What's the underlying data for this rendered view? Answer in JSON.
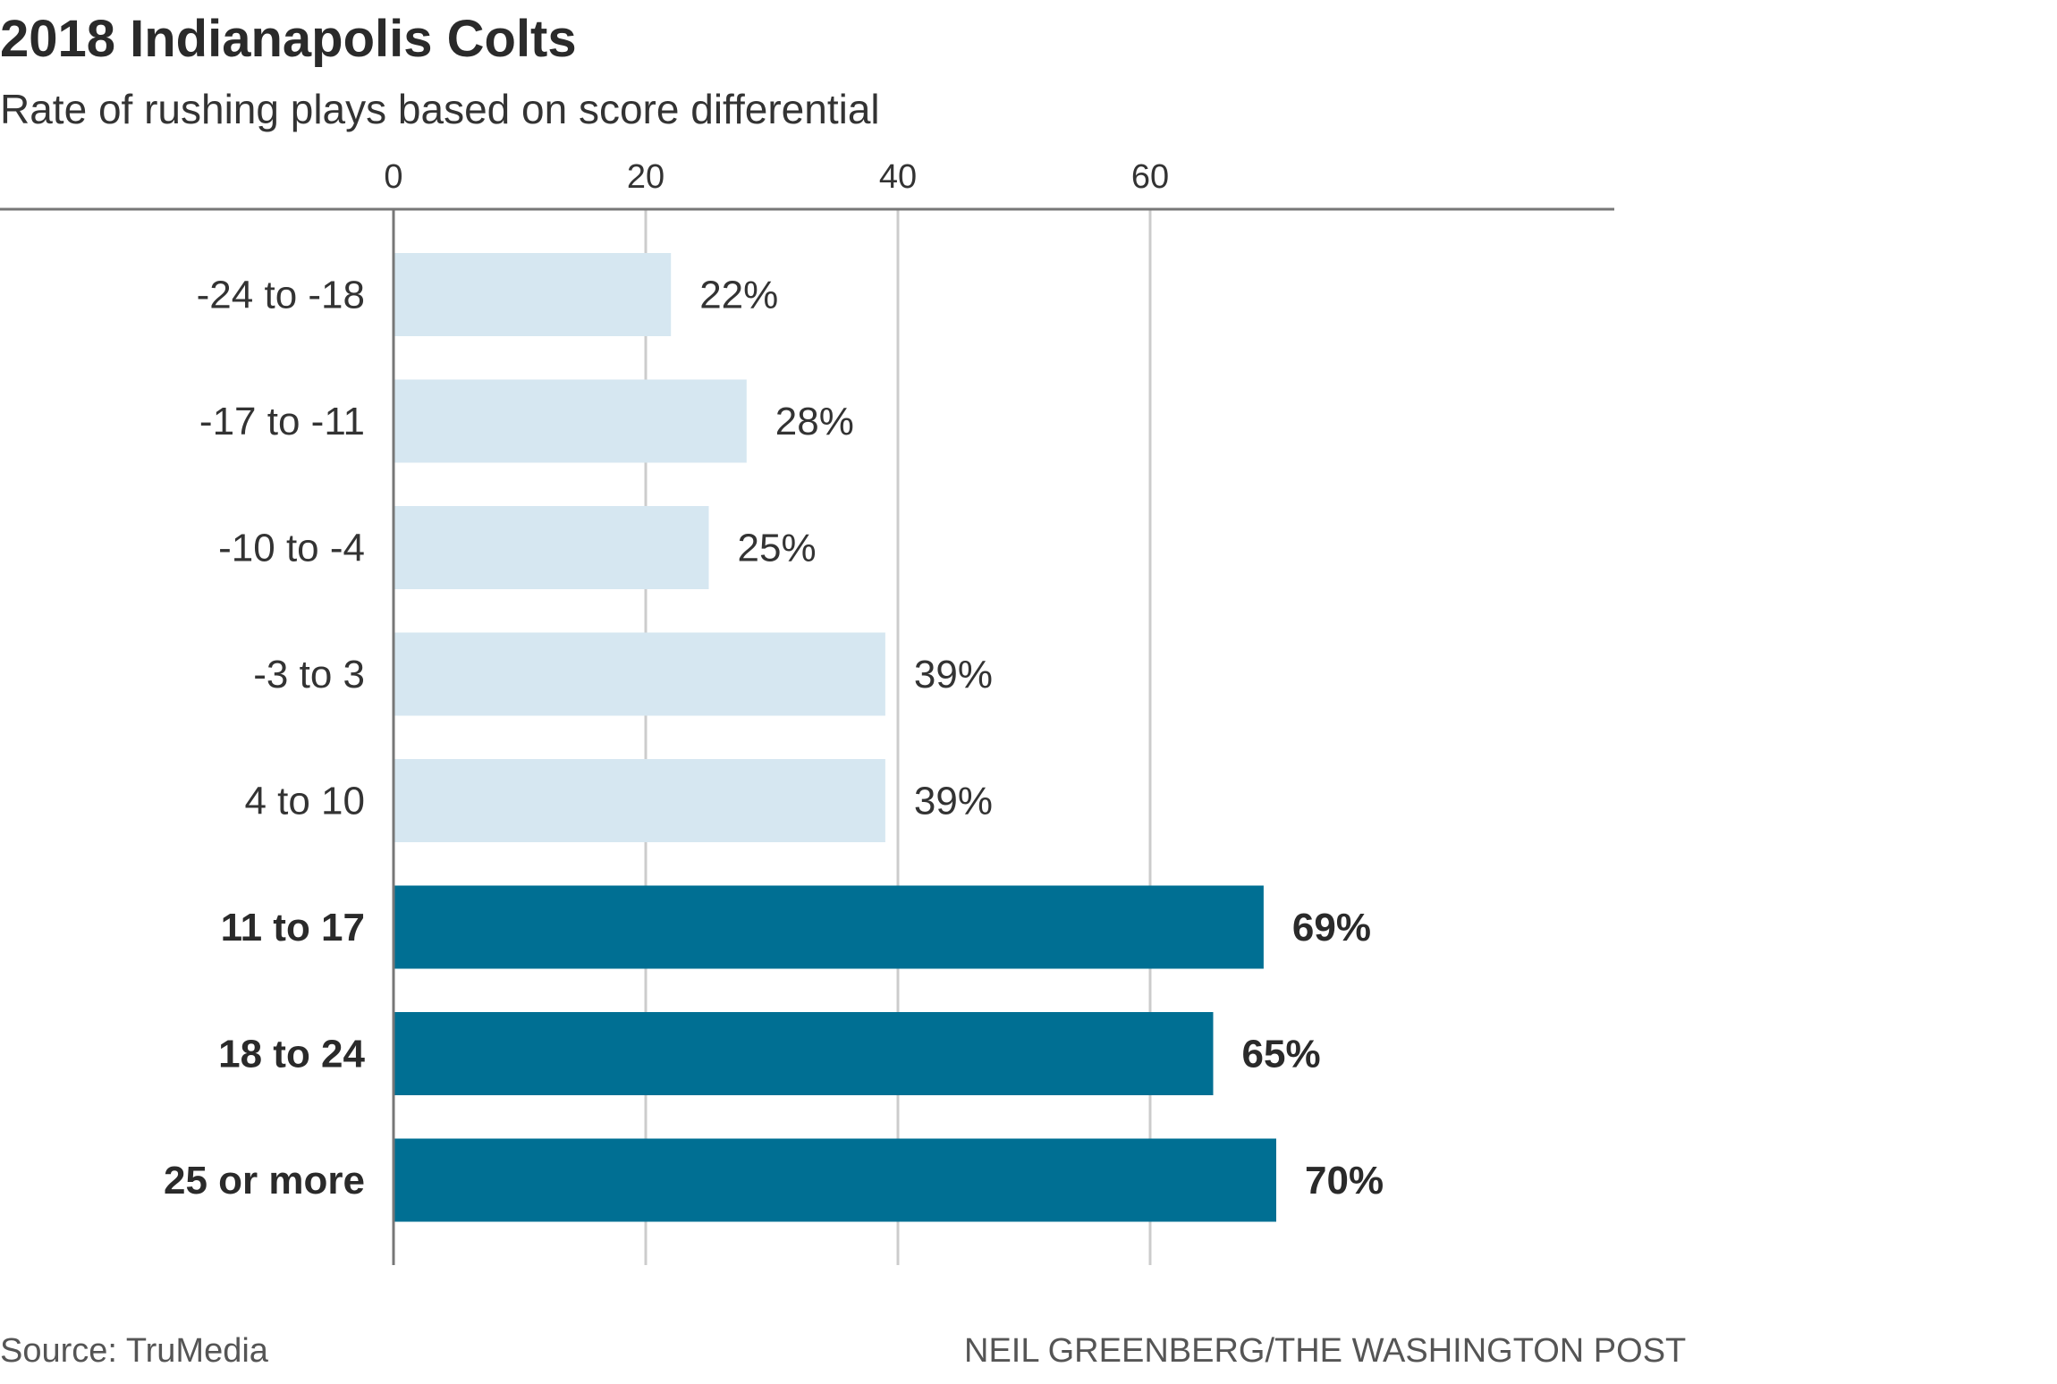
{
  "header": {
    "title": "2018 Indianapolis Colts",
    "subtitle": "Rate of rushing plays based on score differential"
  },
  "footer": {
    "source": "Source: TruMedia",
    "credit": "NEIL GREENBERG/THE WASHINGTON POST"
  },
  "colors": {
    "light_bar": "#d6e7f1",
    "dark_bar": "#006f93",
    "grid": "#cccccc",
    "axis": "#777777"
  },
  "chart_data": {
    "type": "bar",
    "orientation": "horizontal",
    "title": "2018 Indianapolis Colts",
    "subtitle": "Rate of rushing plays based on score differential",
    "categories": [
      "-24 to -18",
      "-17 to -11",
      "-10 to -4",
      "-3 to 3",
      "4 to 10",
      "11 to 17",
      "18 to 24",
      "25 or more"
    ],
    "values": [
      22,
      28,
      25,
      39,
      39,
      69,
      65,
      70
    ],
    "value_labels": [
      "22%",
      "28%",
      "25%",
      "39%",
      "39%",
      "69%",
      "65%",
      "70%"
    ],
    "highlighted": [
      false,
      false,
      false,
      false,
      false,
      true,
      true,
      true
    ],
    "xticks": [
      0,
      20,
      40,
      60
    ],
    "xtick_labels": [
      "0",
      "20",
      "40",
      "60"
    ],
    "xlim": [
      0,
      97
    ],
    "grid": true,
    "xlabel": "",
    "ylabel": ""
  }
}
